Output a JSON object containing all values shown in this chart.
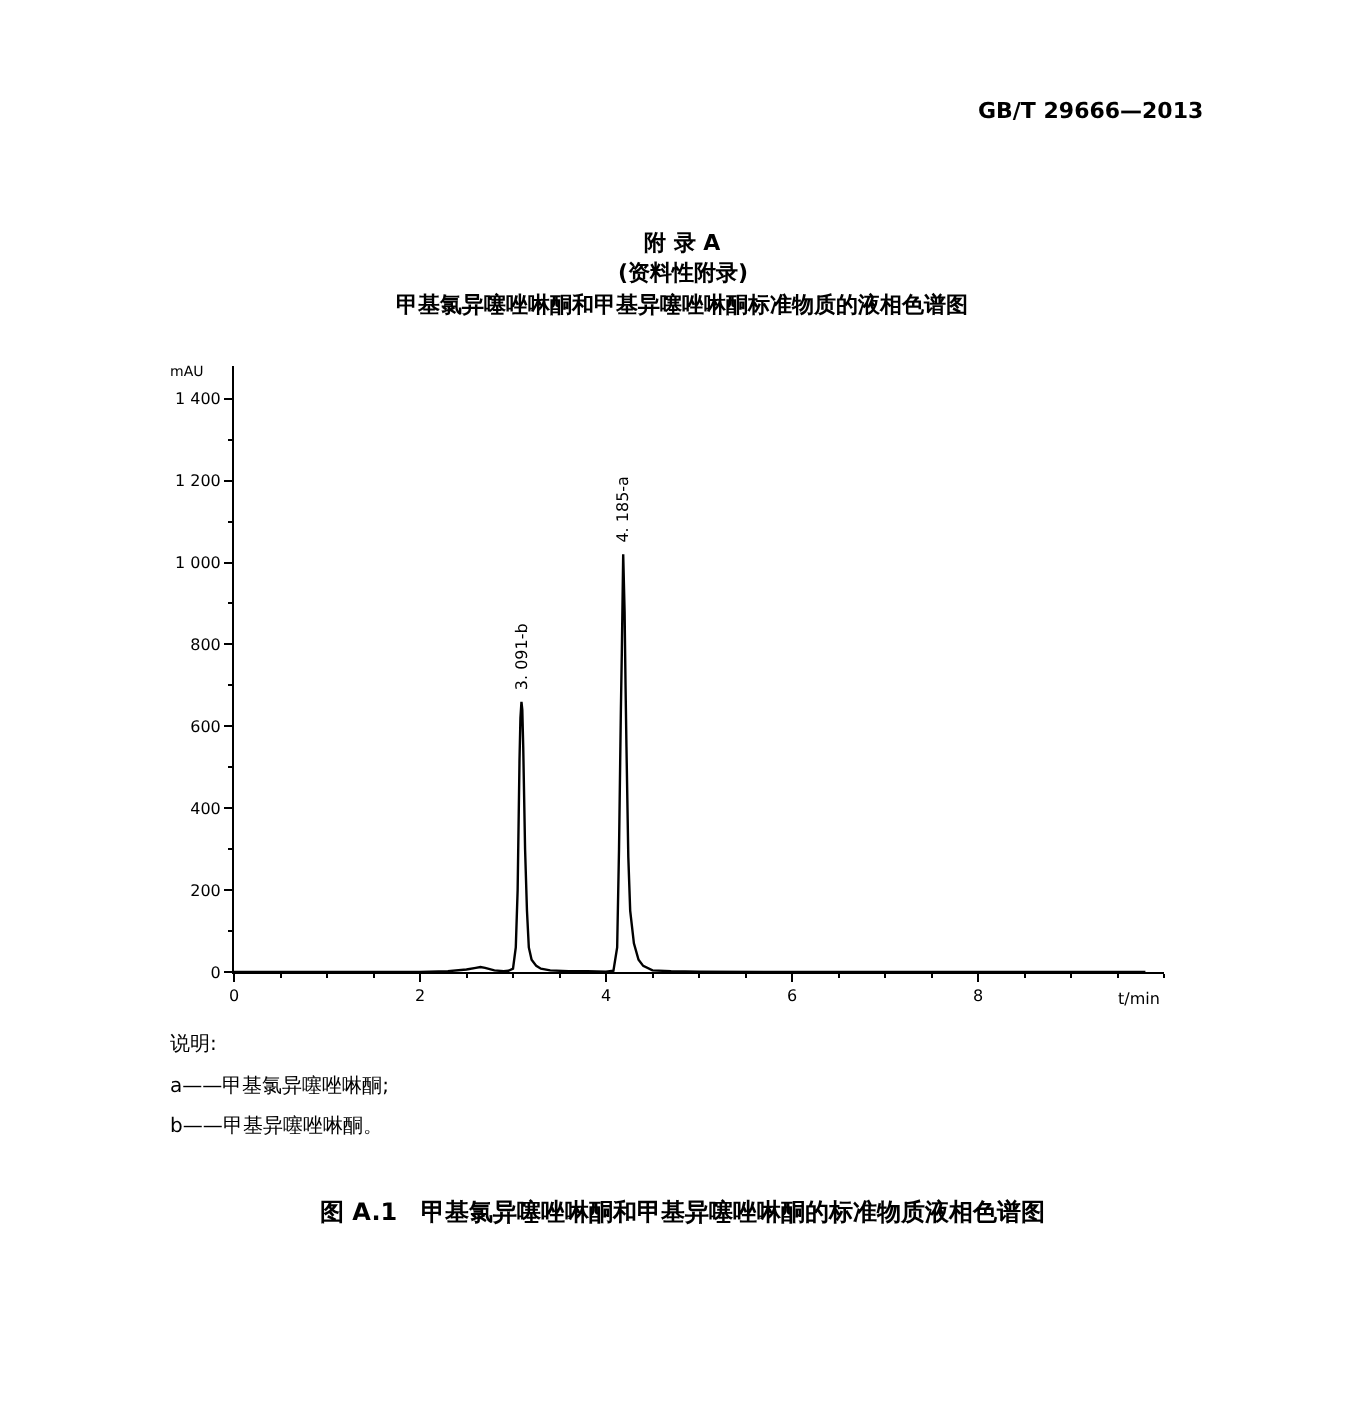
{
  "chart_data": {
    "type": "line",
    "title": "附 录 A",
    "subtitle": "(资料性附录)",
    "xlabel": "t/min",
    "ylabel": "mAU",
    "x": [
      0,
      0.5,
      1.0,
      1.5,
      2.0,
      2.3,
      2.5,
      2.6,
      2.65,
      2.7,
      2.8,
      2.9,
      2.95,
      3.0,
      3.03,
      3.05,
      3.07,
      3.08,
      3.091,
      3.1,
      3.11,
      3.13,
      3.15,
      3.17,
      3.2,
      3.25,
      3.3,
      3.4,
      3.6,
      3.8,
      4.0,
      4.08,
      4.12,
      4.14,
      4.16,
      4.17,
      4.185,
      4.2,
      4.21,
      4.22,
      4.24,
      4.26,
      4.3,
      4.35,
      4.4,
      4.5,
      4.7,
      5.0,
      6.0,
      7.0,
      8.0,
      9.0,
      9.8
    ],
    "series": [
      {
        "color": "#000000",
        "values": [
          0,
          0,
          0,
          0,
          0,
          2,
          6,
          10,
          12,
          10,
          4,
          2,
          3,
          8,
          60,
          200,
          520,
          620,
          660,
          640,
          550,
          300,
          150,
          60,
          30,
          15,
          8,
          4,
          2,
          2,
          1,
          3,
          60,
          300,
          640,
          780,
          1020,
          880,
          700,
          550,
          280,
          150,
          70,
          30,
          15,
          4,
          2,
          1,
          0,
          0,
          0,
          0,
          0
        ]
      }
    ],
    "xlim": [
      0,
      10
    ],
    "xticks": [
      0,
      2,
      4,
      6,
      8
    ],
    "ylim": [
      0,
      1480
    ],
    "yticks": [
      0,
      200,
      400,
      600,
      800,
      {
        "value": 1000,
        "label": "1 000"
      },
      {
        "value": 1200,
        "label": "1 200"
      },
      {
        "value": 1400,
        "label": "1 400"
      }
    ],
    "marker": "none",
    "line_style": "solid",
    "annotations": [
      "GB/T 29666—2013",
      "甲基氯异噻唑啉酮和甲基异噻唑啉酮标准物质的液相色谱图",
      {
        "text": "3. 091-b",
        "x": 3.091,
        "y": 660
      },
      {
        "text": "4. 185-a",
        "x": 4.185,
        "y": 1020
      },
      "说明:",
      "a——甲基氯异噻唑啉酮;",
      "b——甲基异噻唑啉酮。",
      "图 A.1　甲基氯异噻唑啉酮和甲基异噻唑啉酮的标准物质液相色谱图"
    ]
  }
}
